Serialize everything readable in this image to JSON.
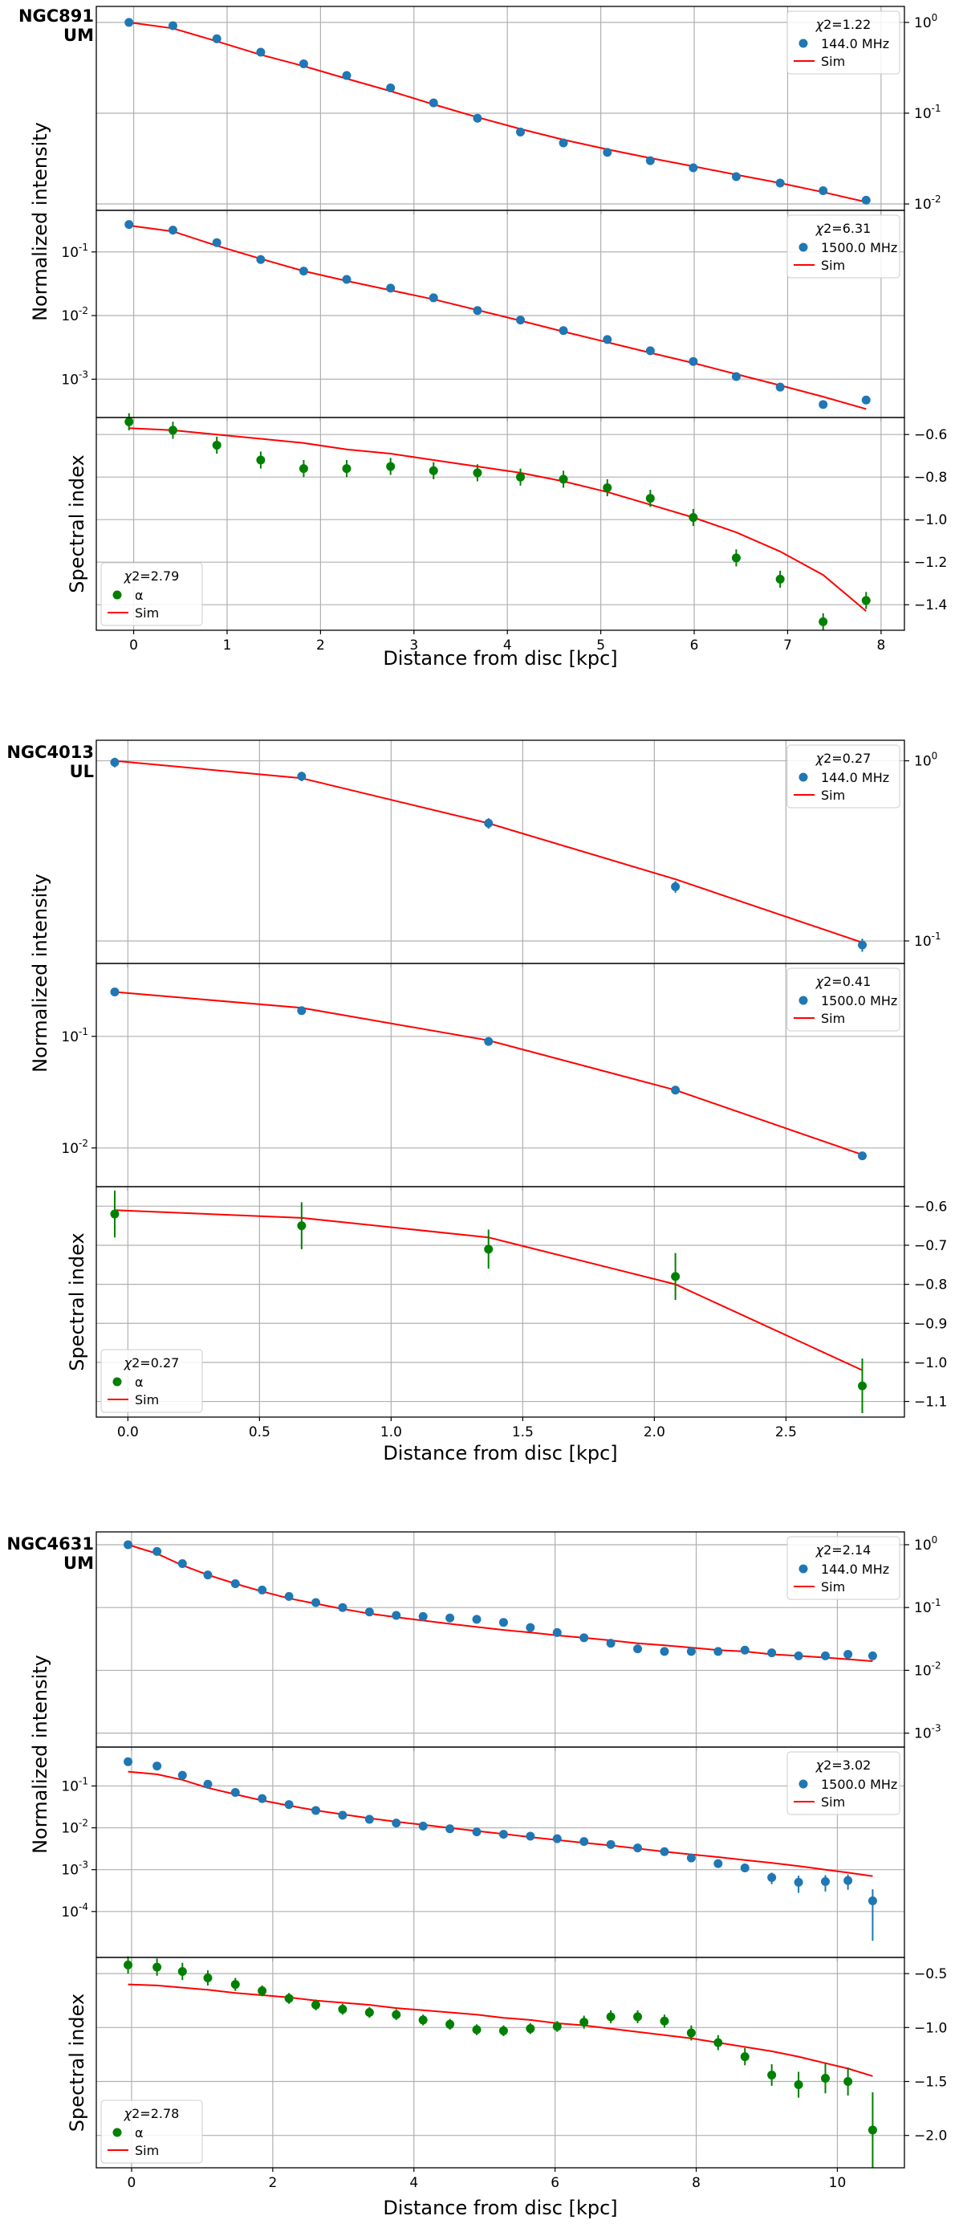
{
  "colors": {
    "blue": "#1f77b4",
    "green": "#008000",
    "sim": "#ff0000",
    "grid": "#b0b0b0"
  },
  "labels": {
    "chi_symbol": "χ",
    "chi_prefix": "=",
    "alpha_symbol": "α"
  },
  "chart_data": [
    {
      "galaxy": "NGC891",
      "model": "UM",
      "xlabel": "Distance from disc [kpc]",
      "xlim": [
        -0.4,
        8.25
      ],
      "xticks": [
        0,
        1,
        2,
        3,
        4,
        5,
        6,
        7,
        8
      ],
      "xtick_labels": [
        "0",
        "1",
        "2",
        "3",
        "4",
        "5",
        "6",
        "7",
        "8"
      ],
      "x": [
        -0.05,
        0.42,
        0.89,
        1.36,
        1.82,
        2.28,
        2.75,
        3.21,
        3.68,
        4.14,
        4.6,
        5.07,
        5.53,
        5.99,
        6.45,
        6.92,
        7.38,
        7.84
      ],
      "panels": [
        {
          "type": "scatter",
          "scale": "log",
          "ylabel": "Normalized intensity",
          "ylim": [
            0.0085,
            1.5
          ],
          "yticks": [
            1,
            0.1,
            0.01
          ],
          "ytick_labels": [
            "10^0",
            "10^-1",
            "10^-2"
          ],
          "tick_side": "right",
          "legend": {
            "chi2": "2=1.22",
            "data_label": "144.0 MHz",
            "sim_label": "Sim",
            "loc": "top-right"
          },
          "y": [
            1.0,
            0.92,
            0.66,
            0.47,
            0.35,
            0.26,
            0.19,
            0.13,
            0.088,
            0.062,
            0.047,
            0.037,
            0.03,
            0.025,
            0.02,
            0.017,
            0.014,
            0.011
          ],
          "yerr": [
            0,
            0,
            0,
            0,
            0,
            0,
            0,
            0,
            0,
            0,
            0,
            0,
            0,
            0,
            0,
            0,
            0,
            0
          ],
          "sim": [
            1.0,
            0.86,
            0.62,
            0.44,
            0.33,
            0.24,
            0.175,
            0.125,
            0.09,
            0.067,
            0.051,
            0.04,
            0.032,
            0.026,
            0.021,
            0.017,
            0.0135,
            0.0105
          ]
        },
        {
          "type": "scatter",
          "scale": "log",
          "ylabel": "",
          "ylim": [
            0.00025,
            0.45
          ],
          "yticks": [
            0.1,
            0.01,
            0.001
          ],
          "ytick_labels": [
            "10^-1",
            "10^-2",
            "10^-3"
          ],
          "tick_side": "left",
          "legend": {
            "chi2": "2=6.31",
            "data_label": "1500.0 MHz",
            "sim_label": "Sim",
            "loc": "top-right"
          },
          "y": [
            0.27,
            0.22,
            0.14,
            0.076,
            0.05,
            0.037,
            0.027,
            0.019,
            0.012,
            0.0085,
            0.0058,
            0.0042,
            0.0028,
            0.0019,
            0.0011,
            0.00075,
            0.0004,
            0.00047
          ],
          "yerr": [
            0,
            0,
            0,
            0,
            0,
            0,
            0,
            0,
            0,
            0,
            0,
            0,
            0,
            0,
            0,
            0,
            0,
            0
          ],
          "sim": [
            0.26,
            0.21,
            0.125,
            0.078,
            0.05,
            0.035,
            0.025,
            0.018,
            0.0122,
            0.0083,
            0.0056,
            0.0038,
            0.0026,
            0.0018,
            0.0012,
            0.0008,
            0.00053,
            0.00034
          ]
        },
        {
          "type": "alpha",
          "scale": "linear",
          "ylabel": "Spectral index",
          "ylim": [
            -1.52,
            -0.52
          ],
          "yticks": [
            -0.6,
            -0.8,
            -1.0,
            -1.2,
            -1.4
          ],
          "ytick_labels": [
            "−0.6",
            "−0.8",
            "−1.0",
            "−1.2",
            "−1.4"
          ],
          "tick_side": "right",
          "legend": {
            "chi2": "2=2.79",
            "data_label": "α",
            "sim_label": "Sim",
            "loc": "bottom-left"
          },
          "y": [
            -0.54,
            -0.58,
            -0.65,
            -0.72,
            -0.76,
            -0.76,
            -0.75,
            -0.77,
            -0.78,
            -0.8,
            -0.81,
            -0.85,
            -0.9,
            -0.99,
            -1.18,
            -1.28,
            -1.48,
            -1.38
          ],
          "yerr": [
            0.04,
            0.04,
            0.04,
            0.04,
            0.04,
            0.04,
            0.04,
            0.04,
            0.04,
            0.04,
            0.04,
            0.04,
            0.04,
            0.04,
            0.04,
            0.04,
            0.04,
            0.04
          ],
          "sim": [
            -0.57,
            -0.58,
            -0.6,
            -0.62,
            -0.64,
            -0.67,
            -0.69,
            -0.72,
            -0.75,
            -0.78,
            -0.82,
            -0.87,
            -0.93,
            -0.99,
            -1.06,
            -1.15,
            -1.26,
            -1.43
          ]
        }
      ]
    },
    {
      "galaxy": "NGC4013",
      "model": "UL",
      "xlabel": "Distance from disc [kpc]",
      "xlim": [
        -0.12,
        2.95
      ],
      "xticks": [
        0,
        0.5,
        1,
        1.5,
        2,
        2.5
      ],
      "xtick_labels": [
        "0.0",
        "0.5",
        "1.0",
        "1.5",
        "2.0",
        "2.5"
      ],
      "x": [
        -0.05,
        0.66,
        1.37,
        2.08,
        2.79
      ],
      "panels": [
        {
          "type": "scatter",
          "scale": "log",
          "ylabel": "Normalized intensity",
          "ylim": [
            0.075,
            1.3
          ],
          "yticks": [
            1,
            0.1
          ],
          "ytick_labels": [
            "10^0",
            "10^-1"
          ],
          "tick_side": "right",
          "legend": {
            "chi2": "2=0.27",
            "data_label": "144.0 MHz",
            "sim_label": "Sim",
            "loc": "top-right"
          },
          "y": [
            0.98,
            0.82,
            0.45,
            0.2,
            0.095
          ],
          "yerr": [
            0.06,
            0.05,
            0.03,
            0.015,
            0.008
          ],
          "sim": [
            1.0,
            0.8,
            0.45,
            0.22,
            0.098
          ]
        },
        {
          "type": "scatter",
          "scale": "log",
          "ylabel": "",
          "ylim": [
            0.0045,
            0.45
          ],
          "yticks": [
            0.1,
            0.01
          ],
          "ytick_labels": [
            "10^-1",
            "10^-2"
          ],
          "tick_side": "left",
          "legend": {
            "chi2": "2=0.41",
            "data_label": "1500.0 MHz",
            "sim_label": "Sim",
            "loc": "top-right"
          },
          "y": [
            0.25,
            0.17,
            0.09,
            0.033,
            0.0085
          ],
          "yerr": [
            0,
            0,
            0,
            0,
            0
          ],
          "sim": [
            0.25,
            0.18,
            0.092,
            0.033,
            0.0087
          ]
        },
        {
          "type": "alpha",
          "scale": "linear",
          "ylabel": "Spectral index",
          "ylim": [
            -1.14,
            -0.55
          ],
          "yticks": [
            -0.6,
            -0.7,
            -0.8,
            -0.9,
            -1.0,
            -1.1
          ],
          "ytick_labels": [
            "−0.6",
            "−0.7",
            "−0.8",
            "−0.9",
            "−1.0",
            "−1.1"
          ],
          "tick_side": "right",
          "legend": {
            "chi2": "2=0.27",
            "data_label": "α",
            "sim_label": "Sim",
            "loc": "bottom-left"
          },
          "y": [
            -0.62,
            -0.65,
            -0.71,
            -0.78,
            -1.06
          ],
          "yerr": [
            0.06,
            0.06,
            0.05,
            0.06,
            0.07
          ],
          "sim": [
            -0.61,
            -0.63,
            -0.68,
            -0.8,
            -1.02
          ]
        }
      ]
    },
    {
      "galaxy": "NGC4631",
      "model": "UM",
      "xlabel": "Distance from disc [kpc]",
      "xlim": [
        -0.5,
        10.95
      ],
      "xticks": [
        0,
        2,
        4,
        6,
        8,
        10
      ],
      "xtick_labels": [
        "0",
        "2",
        "4",
        "6",
        "8",
        "10"
      ],
      "x": [
        -0.05,
        0.36,
        0.72,
        1.08,
        1.47,
        1.85,
        2.23,
        2.61,
        2.99,
        3.37,
        3.75,
        4.13,
        4.51,
        4.89,
        5.27,
        5.65,
        6.03,
        6.41,
        6.79,
        7.17,
        7.55,
        7.93,
        8.31,
        8.69,
        9.07,
        9.45,
        9.83,
        10.15,
        10.5
      ],
      "panels": [
        {
          "type": "scatter",
          "scale": "log",
          "ylabel": "Normalized intensity",
          "ylim": [
            0.0006,
            1.6
          ],
          "yticks": [
            1,
            0.1,
            0.01,
            0.001
          ],
          "ytick_labels": [
            "10^0",
            "10^-1",
            "10^-2",
            "10^-3"
          ],
          "tick_side": "right",
          "legend": {
            "chi2": "2=2.14",
            "data_label": "144.0 MHz",
            "sim_label": "Sim",
            "loc": "top-right"
          },
          "y": [
            1.0,
            0.78,
            0.5,
            0.33,
            0.24,
            0.19,
            0.15,
            0.12,
            0.1,
            0.085,
            0.075,
            0.072,
            0.068,
            0.065,
            0.058,
            0.048,
            0.04,
            0.033,
            0.027,
            0.022,
            0.02,
            0.02,
            0.02,
            0.021,
            0.019,
            0.017,
            0.017,
            0.018,
            0.017
          ],
          "yerr": [
            0,
            0,
            0,
            0,
            0,
            0,
            0,
            0,
            0,
            0,
            0,
            0,
            0,
            0,
            0,
            0,
            0,
            0,
            0,
            0,
            0,
            0,
            0,
            0,
            0,
            0,
            0,
            0,
            0
          ],
          "sim": [
            1.0,
            0.72,
            0.47,
            0.33,
            0.24,
            0.18,
            0.14,
            0.115,
            0.095,
            0.08,
            0.07,
            0.062,
            0.055,
            0.049,
            0.044,
            0.04,
            0.036,
            0.033,
            0.03,
            0.027,
            0.025,
            0.023,
            0.021,
            0.02,
            0.018,
            0.017,
            0.016,
            0.015,
            0.014
          ]
        },
        {
          "type": "scatter",
          "scale": "log",
          "ylabel": "",
          "ylim": [
            8e-06,
            0.85
          ],
          "yticks": [
            0.1,
            0.01,
            0.001,
            0.0001
          ],
          "ytick_labels": [
            "10^-1",
            "10^-2",
            "10^-3",
            "10^-4"
          ],
          "tick_side": "left",
          "legend": {
            "chi2": "2=3.02",
            "data_label": "1500.0 MHz",
            "sim_label": "Sim",
            "loc": "top-right"
          },
          "y": [
            0.38,
            0.3,
            0.18,
            0.11,
            0.07,
            0.05,
            0.036,
            0.026,
            0.02,
            0.016,
            0.013,
            0.011,
            0.0095,
            0.008,
            0.007,
            0.0063,
            0.0055,
            0.0047,
            0.004,
            0.0033,
            0.0027,
            0.0019,
            0.0014,
            0.0011,
            0.00065,
            0.0005,
            0.00052,
            0.00055,
            0.00018
          ],
          "yerr": [
            0,
            0,
            0,
            0,
            0,
            0,
            0,
            0,
            0,
            0,
            0,
            0,
            0,
            0,
            0,
            0,
            0,
            0,
            0,
            0,
            0,
            0,
            0,
            0.00015,
            0.0002,
            0.00022,
            0.00022,
            0.00022,
            0.00016
          ],
          "sim": [
            0.22,
            0.19,
            0.14,
            0.09,
            0.063,
            0.045,
            0.034,
            0.026,
            0.021,
            0.017,
            0.014,
            0.0118,
            0.0099,
            0.0084,
            0.0071,
            0.006,
            0.0051,
            0.0044,
            0.0038,
            0.0032,
            0.0027,
            0.0023,
            0.002,
            0.0017,
            0.00145,
            0.00122,
            0.001,
            0.00085,
            0.0007
          ]
        },
        {
          "type": "alpha",
          "scale": "linear",
          "ylabel": "Spectral index",
          "ylim": [
            -2.3,
            -0.35
          ],
          "yticks": [
            -0.5,
            -1.0,
            -1.5,
            -2.0
          ],
          "ytick_labels": [
            "−0.5",
            "−1.0",
            "−1.5",
            "−2.0"
          ],
          "tick_side": "right",
          "legend": {
            "chi2": "2=2.78",
            "data_label": "α",
            "sim_label": "Sim",
            "loc": "bottom-left"
          },
          "y": [
            -0.42,
            -0.44,
            -0.48,
            -0.54,
            -0.6,
            -0.66,
            -0.73,
            -0.79,
            -0.83,
            -0.86,
            -0.88,
            -0.93,
            -0.97,
            -1.02,
            -1.03,
            -1.01,
            -0.99,
            -0.95,
            -0.9,
            -0.9,
            -0.94,
            -1.05,
            -1.14,
            -1.27,
            -1.44,
            -1.53,
            -1.47,
            -1.5,
            -1.95
          ],
          "yerr": [
            0.08,
            0.08,
            0.08,
            0.07,
            0.06,
            0.05,
            0.05,
            0.05,
            0.05,
            0.05,
            0.05,
            0.05,
            0.05,
            0.05,
            0.05,
            0.05,
            0.05,
            0.06,
            0.06,
            0.06,
            0.06,
            0.07,
            0.07,
            0.08,
            0.1,
            0.12,
            0.14,
            0.13,
            0.35
          ],
          "sim": [
            -0.6,
            -0.61,
            -0.63,
            -0.65,
            -0.68,
            -0.7,
            -0.72,
            -0.75,
            -0.77,
            -0.79,
            -0.82,
            -0.84,
            -0.86,
            -0.88,
            -0.91,
            -0.93,
            -0.96,
            -0.98,
            -1.01,
            -1.04,
            -1.07,
            -1.1,
            -1.14,
            -1.18,
            -1.22,
            -1.27,
            -1.33,
            -1.38,
            -1.45
          ]
        }
      ]
    }
  ]
}
